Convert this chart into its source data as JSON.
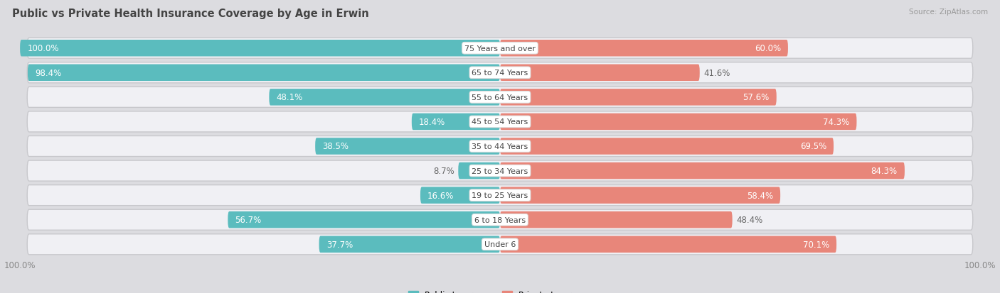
{
  "title": "Public vs Private Health Insurance Coverage by Age in Erwin",
  "source": "Source: ZipAtlas.com",
  "categories": [
    "Under 6",
    "6 to 18 Years",
    "19 to 25 Years",
    "25 to 34 Years",
    "35 to 44 Years",
    "45 to 54 Years",
    "55 to 64 Years",
    "65 to 74 Years",
    "75 Years and over"
  ],
  "public_values": [
    37.7,
    56.7,
    16.6,
    8.7,
    38.5,
    18.4,
    48.1,
    98.4,
    100.0
  ],
  "private_values": [
    70.1,
    48.4,
    58.4,
    84.3,
    69.5,
    74.3,
    57.6,
    41.6,
    60.0
  ],
  "public_color": "#5bbcbe",
  "private_color": "#e8867a",
  "public_color_light": "#a8d8d9",
  "private_color_light": "#f0b8b0",
  "row_bg_color": "#e8e8ec",
  "row_inner_bg": "#f4f4f6",
  "max_value": 100.0,
  "title_fontsize": 10.5,
  "label_fontsize": 8.5,
  "bar_height": 0.68,
  "background_color": "#e8e8ec",
  "fig_bg": "#dcdce0"
}
